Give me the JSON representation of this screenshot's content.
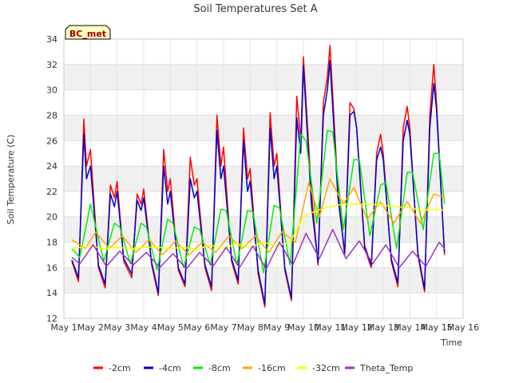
{
  "chart_data": {
    "type": "line",
    "title": "Soil Temperatures Set A",
    "xlabel": "Time",
    "ylabel": "Soil Temperature (C)",
    "badge": "BC_met",
    "x_ticks": [
      "May 1",
      "May 2",
      "May 3",
      "May 4",
      "May 5",
      "May 6",
      "May 7",
      "May 8",
      "May 9",
      "May 10",
      "May 11",
      "May 12",
      "May 13",
      "May 14",
      "May 15",
      "May 16"
    ],
    "y_ticks": [
      12,
      14,
      16,
      18,
      20,
      22,
      24,
      26,
      28,
      30,
      32,
      34
    ],
    "xlim": [
      1,
      16
    ],
    "ylim": [
      12,
      34
    ],
    "grid": true,
    "legend_position": "bottom",
    "series": [
      {
        "name": "-2cm",
        "color": "#ff0000",
        "x": [
          1.3,
          1.55,
          1.75,
          1.85,
          2.0,
          2.3,
          2.55,
          2.75,
          2.9,
          3.0,
          3.25,
          3.55,
          3.75,
          3.9,
          4.0,
          4.3,
          4.55,
          4.75,
          4.9,
          5.0,
          5.3,
          5.55,
          5.75,
          5.9,
          6.0,
          6.3,
          6.55,
          6.75,
          6.9,
          7.0,
          7.3,
          7.55,
          7.75,
          7.9,
          8.0,
          8.3,
          8.55,
          8.75,
          8.9,
          9.0,
          9.3,
          9.55,
          9.75,
          9.9,
          10.0,
          10.3,
          10.55,
          10.75,
          10.9,
          11.0,
          11.3,
          11.55,
          11.75,
          11.9,
          12.0,
          12.3,
          12.55,
          12.75,
          12.9,
          13.0,
          13.3,
          13.55,
          13.75,
          13.9,
          14.0,
          14.3,
          14.55,
          14.75,
          14.9,
          15.0,
          15.3
        ],
        "y": [
          16.5,
          14.9,
          27.7,
          24.0,
          25.3,
          16.0,
          14.4,
          22.5,
          21.5,
          22.8,
          16.5,
          15.2,
          21.8,
          21.0,
          22.2,
          16.2,
          13.8,
          25.3,
          22.0,
          23.0,
          15.8,
          14.5,
          24.7,
          22.5,
          23.0,
          16.0,
          14.2,
          28.0,
          24.0,
          25.5,
          16.5,
          14.7,
          27.0,
          23.0,
          23.8,
          15.5,
          12.9,
          28.2,
          24.0,
          25.0,
          15.8,
          13.4,
          29.5,
          26.0,
          32.6,
          22.0,
          16.2,
          29.0,
          31.0,
          33.5,
          22.0,
          17.0,
          29.0,
          28.5,
          27.0,
          17.5,
          16.0,
          25.0,
          26.5,
          25.0,
          16.5,
          14.5,
          27.0,
          28.7,
          27.0,
          17.0,
          14.1,
          28.0,
          32.0,
          29.0,
          17.0
        ]
      },
      {
        "name": "-4cm",
        "color": "#0000cc",
        "x": [
          1.3,
          1.55,
          1.75,
          1.85,
          2.0,
          2.3,
          2.55,
          2.75,
          2.9,
          3.0,
          3.25,
          3.55,
          3.75,
          3.9,
          4.0,
          4.3,
          4.55,
          4.75,
          4.9,
          5.0,
          5.3,
          5.55,
          5.75,
          5.9,
          6.0,
          6.3,
          6.55,
          6.75,
          6.9,
          7.0,
          7.3,
          7.55,
          7.75,
          7.9,
          8.0,
          8.3,
          8.55,
          8.75,
          8.9,
          9.0,
          9.3,
          9.55,
          9.75,
          9.9,
          10.0,
          10.3,
          10.55,
          10.75,
          10.9,
          11.0,
          11.3,
          11.55,
          11.75,
          11.9,
          12.0,
          12.3,
          12.55,
          12.75,
          12.9,
          13.0,
          13.3,
          13.55,
          13.75,
          13.9,
          14.0,
          14.3,
          14.55,
          14.75,
          14.9,
          15.0,
          15.3
        ],
        "y": [
          16.6,
          15.2,
          26.5,
          23.0,
          24.0,
          16.2,
          14.7,
          21.8,
          20.8,
          22.0,
          16.7,
          15.5,
          21.3,
          20.5,
          21.5,
          16.4,
          14.0,
          24.0,
          21.0,
          22.0,
          16.0,
          14.7,
          23.0,
          21.5,
          22.0,
          16.2,
          14.5,
          26.8,
          23.0,
          24.0,
          16.7,
          15.0,
          26.0,
          22.0,
          22.8,
          15.8,
          13.1,
          27.0,
          23.0,
          24.0,
          16.0,
          13.6,
          27.8,
          25.0,
          31.9,
          21.0,
          16.4,
          28.0,
          30.0,
          32.3,
          21.5,
          17.2,
          28.0,
          28.3,
          27.0,
          17.7,
          16.2,
          24.5,
          25.5,
          24.5,
          16.7,
          14.8,
          26.0,
          27.6,
          26.5,
          17.2,
          14.3,
          27.0,
          30.5,
          28.5,
          17.2
        ]
      },
      {
        "name": "-8cm",
        "color": "#00ee00",
        "x": [
          1.3,
          1.6,
          2.0,
          2.5,
          2.9,
          3.1,
          3.5,
          3.9,
          4.1,
          4.5,
          4.9,
          5.1,
          5.5,
          5.9,
          6.1,
          6.5,
          6.9,
          7.1,
          7.5,
          7.9,
          8.1,
          8.5,
          8.9,
          9.1,
          9.5,
          9.9,
          10.1,
          10.5,
          10.9,
          11.1,
          11.5,
          11.9,
          12.1,
          12.5,
          12.9,
          13.1,
          13.5,
          13.9,
          14.1,
          14.5,
          14.9,
          15.1,
          15.3
        ],
        "y": [
          17.5,
          16.8,
          21.0,
          16.5,
          19.5,
          19.2,
          16.3,
          19.5,
          19.2,
          15.8,
          19.8,
          19.5,
          16.0,
          19.2,
          19.0,
          16.2,
          20.6,
          20.5,
          16.2,
          20.5,
          20.4,
          15.6,
          20.9,
          20.7,
          16.2,
          26.5,
          26.0,
          19.5,
          26.8,
          26.7,
          19.0,
          24.5,
          24.5,
          18.5,
          22.5,
          22.7,
          17.5,
          23.5,
          23.5,
          19.0,
          25.0,
          25.0,
          21.0
        ]
      },
      {
        "name": "-16cm",
        "color": "#ffa500",
        "x": [
          1.3,
          1.8,
          2.2,
          2.7,
          3.2,
          3.7,
          4.2,
          4.7,
          5.2,
          5.7,
          6.2,
          6.7,
          7.2,
          7.7,
          8.2,
          8.7,
          9.2,
          9.7,
          10.2,
          10.6,
          11.0,
          11.5,
          11.9,
          12.4,
          12.9,
          13.4,
          13.9,
          14.4,
          14.9,
          15.3
        ],
        "y": [
          18.2,
          17.5,
          18.8,
          17.5,
          18.5,
          17.2,
          18.2,
          17.0,
          18.1,
          17.0,
          18.0,
          17.2,
          18.5,
          17.5,
          18.5,
          17.2,
          18.8,
          18.0,
          22.7,
          20.0,
          23.0,
          21.0,
          22.3,
          19.8,
          21.2,
          19.5,
          21.2,
          19.5,
          21.8,
          21.5
        ]
      },
      {
        "name": "-32cm",
        "color": "#ffff00",
        "x": [
          1.3,
          2.0,
          2.5,
          3.0,
          3.5,
          4.0,
          4.5,
          5.0,
          5.5,
          6.0,
          6.5,
          7.0,
          7.5,
          8.0,
          8.5,
          9.0,
          9.5,
          10.0,
          10.5,
          11.0,
          11.5,
          12.0,
          12.5,
          13.0,
          13.5,
          14.0,
          14.5,
          15.0,
          15.3
        ],
        "y": [
          17.5,
          17.7,
          17.5,
          17.6,
          17.5,
          17.6,
          17.6,
          17.5,
          17.6,
          17.4,
          17.8,
          17.5,
          17.9,
          17.6,
          18.0,
          17.7,
          18.0,
          20.0,
          20.5,
          20.8,
          21.0,
          21.0,
          21.0,
          20.9,
          20.8,
          20.7,
          20.5,
          20.6,
          20.5
        ]
      },
      {
        "name": "Theta_Temp",
        "color": "#9932cc",
        "x": [
          1.3,
          1.6,
          2.1,
          2.6,
          3.1,
          3.6,
          4.1,
          4.6,
          5.1,
          5.6,
          6.1,
          6.6,
          7.1,
          7.6,
          8.1,
          8.6,
          9.1,
          9.6,
          10.1,
          10.6,
          11.1,
          11.6,
          12.1,
          12.6,
          13.1,
          13.6,
          14.1,
          14.6,
          15.1,
          15.3
        ],
        "y": [
          16.8,
          16.3,
          17.8,
          16.1,
          17.3,
          16.2,
          17.2,
          16.0,
          17.1,
          15.9,
          17.2,
          16.1,
          17.6,
          16.0,
          17.7,
          15.9,
          18.0,
          16.2,
          18.7,
          16.7,
          19.0,
          16.7,
          18.1,
          16.3,
          17.8,
          16.0,
          17.3,
          16.1,
          18.0,
          17.5
        ]
      }
    ]
  }
}
